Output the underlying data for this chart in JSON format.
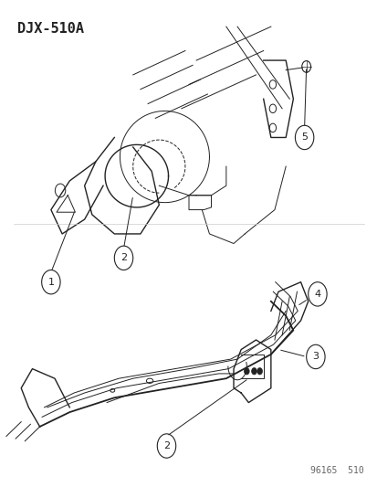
{
  "title_code": "DJX-510A",
  "footer_code": "96165  510",
  "bg_color": "#ffffff",
  "line_color": "#222222",
  "title_fontsize": 11,
  "footer_fontsize": 7,
  "callout_fontsize": 8
}
